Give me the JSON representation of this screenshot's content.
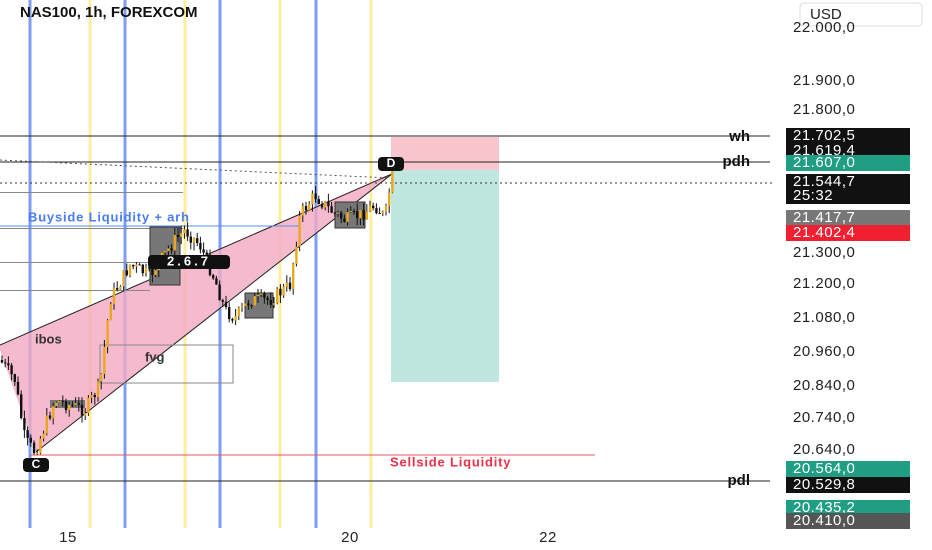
{
  "header": {
    "title": "NAS100, 1h, FOREXCOM",
    "currency": "USD"
  },
  "price_axis": {
    "labels": [
      "22.000,0",
      "21.900,0",
      "21.800,0",
      "21.300,0",
      "21.200,0",
      "21.080,0",
      "20.960,0",
      "20.840,0",
      "20.740,0",
      "20.640,0"
    ],
    "badges": [
      "21.702,5",
      "21.619,4",
      "21.607,0",
      "21.544,7",
      "25:32",
      "21.417,7",
      "21.402,4",
      "20.564,0",
      "20.529,8",
      "20.435,2",
      "20.410,0"
    ]
  },
  "time_axis": {
    "labels": [
      "15",
      "20",
      "22"
    ]
  },
  "annotations": {
    "wh": "wh",
    "pdh": "pdh",
    "pdl": "pdl",
    "buyside": "Buyside Liquidity + arh",
    "sellside": "Sellside Liquidity",
    "ibos": "ibos",
    "fvg": "fvg",
    "point_d": "D",
    "point_c": "C",
    "pattern": "2.6.7"
  }
}
